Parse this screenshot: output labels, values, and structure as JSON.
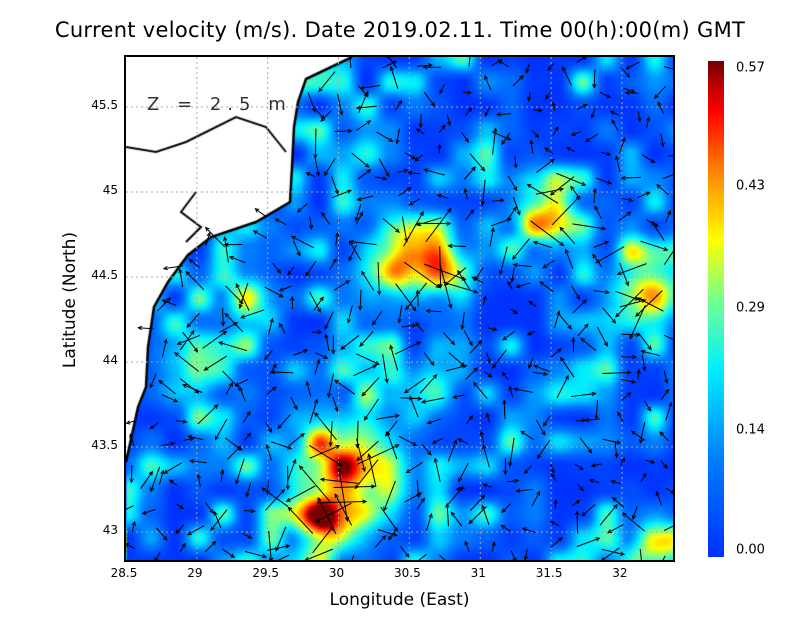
{
  "title": "Current velocity (m/s). Date 2019.02.11. Time 00(h):00(m) GMT",
  "depth_label": "Z = 2.5 m",
  "x_axis": {
    "label": "Longitude (East)",
    "range": [
      28.5,
      32.4
    ],
    "ticks": [
      "28.5",
      "29",
      "29.5",
      "30",
      "30.5",
      "31",
      "31.5",
      "32"
    ]
  },
  "y_axis": {
    "label": "Latitude (North)",
    "range": [
      42.81,
      45.79
    ],
    "ticks": [
      "45.5",
      "45",
      "44.5",
      "44",
      "43.5",
      "43"
    ]
  },
  "colorbar": {
    "min": 0.0,
    "max": 0.57,
    "ticks": [
      "0.57",
      "0.43",
      "0.29",
      "0.14",
      "0.00"
    ],
    "colormap": "jet"
  },
  "colors": {
    "land": "#ffffff",
    "coastline": "#000000",
    "grid": "#aaaaaa",
    "arrows": "#000000"
  }
}
